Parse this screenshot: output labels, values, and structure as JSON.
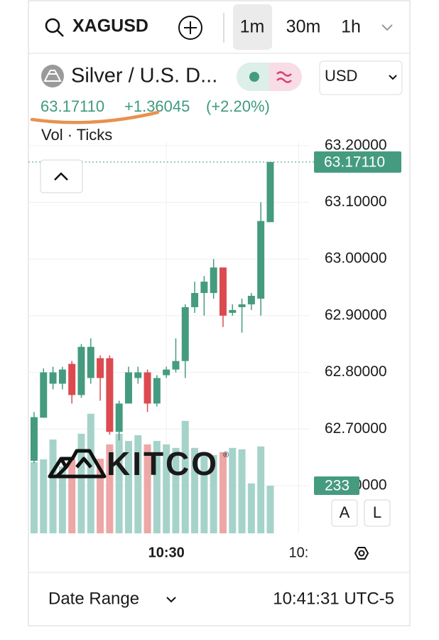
{
  "toolbar": {
    "symbol": "XAGUSD",
    "intervals": [
      "1m",
      "30m",
      "1h"
    ]
  },
  "instrument": {
    "name": "Silver / U.S. D...",
    "currency": "USD",
    "last": "63.17110",
    "change": "+1.36045",
    "change_percent": "(+2.20%)",
    "indicator": "Vol · Ticks"
  },
  "logo": {
    "text": "KITCO",
    "mark": "®"
  },
  "scale_buttons": [
    "A",
    "L"
  ],
  "footer": {
    "date_range": "Date Range",
    "clock": "10:41:31 UTC-5"
  },
  "chart_data": {
    "type": "candlestick",
    "x": [
      0,
      1,
      2,
      3,
      4,
      5,
      6,
      7,
      8,
      9,
      10,
      11,
      12,
      13,
      14,
      15,
      16,
      17,
      18,
      19,
      20,
      21,
      22,
      23,
      24,
      25
    ],
    "xlim": [
      -0.6,
      29.1
    ],
    "xticks": [
      {
        "value": 14,
        "label": "10:30"
      },
      {
        "value": 28,
        "label": "10:"
      }
    ],
    "open": [
      62.644,
      62.72,
      62.78,
      62.78,
      62.815,
      62.76,
      62.79,
      62.825,
      62.825,
      62.695,
      62.745,
      62.79,
      62.8,
      62.745,
      62.795,
      62.805,
      62.82,
      62.915,
      62.94,
      62.94,
      62.985,
      62.905,
      62.915,
      62.92,
      62.93,
      63.065
    ],
    "high": [
      62.73,
      62.807,
      62.81,
      62.81,
      62.82,
      62.85,
      62.86,
      62.83,
      62.83,
      62.75,
      62.81,
      62.81,
      62.805,
      62.795,
      62.81,
      62.86,
      62.92,
      62.96,
      62.97,
      63.0,
      62.985,
      62.92,
      62.93,
      62.94,
      63.1,
      63.1711
    ],
    "low": [
      62.64,
      62.72,
      62.77,
      62.77,
      62.745,
      62.755,
      62.78,
      62.75,
      62.69,
      62.68,
      62.745,
      62.78,
      62.73,
      62.74,
      62.79,
      62.8,
      62.79,
      62.905,
      62.9,
      62.93,
      62.88,
      62.9,
      62.87,
      62.91,
      62.9,
      63.065
    ],
    "close": [
      62.721,
      62.8,
      62.8,
      62.805,
      62.76,
      62.845,
      62.845,
      62.79,
      62.695,
      62.745,
      62.8,
      62.8,
      62.745,
      62.79,
      62.805,
      62.82,
      62.915,
      62.94,
      62.96,
      62.985,
      62.9,
      62.91,
      62.92,
      62.935,
      63.067,
      63.1711
    ],
    "volume": [
      348,
      362,
      459,
      327,
      362,
      487,
      585,
      365,
      435,
      487,
      452,
      480,
      435,
      452,
      435,
      418,
      550,
      418,
      390,
      383,
      397,
      418,
      411,
      244,
      425,
      233
    ],
    "up_color": "#459b7f",
    "down_color": "#dc4a50",
    "volume_up_color": "#a5d3ca",
    "volume_down_color": "#eca7a6",
    "ylim": [
      62.516,
      63.206
    ],
    "yticks": [
      {
        "value": 63.2,
        "label": "63.20000"
      },
      {
        "value": 63.1,
        "label": "63.10000"
      },
      {
        "value": 63.0,
        "label": "63.00000"
      },
      {
        "value": 62.9,
        "label": "62.90000"
      },
      {
        "value": 62.8,
        "label": "62.80000"
      },
      {
        "value": 62.7,
        "label": "62.70000"
      },
      {
        "value": 62.6,
        "label": "62.60000"
      }
    ],
    "volume_lim": [
      0,
      1913
    ],
    "last_price": {
      "value": 63.1711,
      "label": "63.17110"
    },
    "last_volume": {
      "value": 233,
      "label": "233"
    },
    "grid": true
  }
}
